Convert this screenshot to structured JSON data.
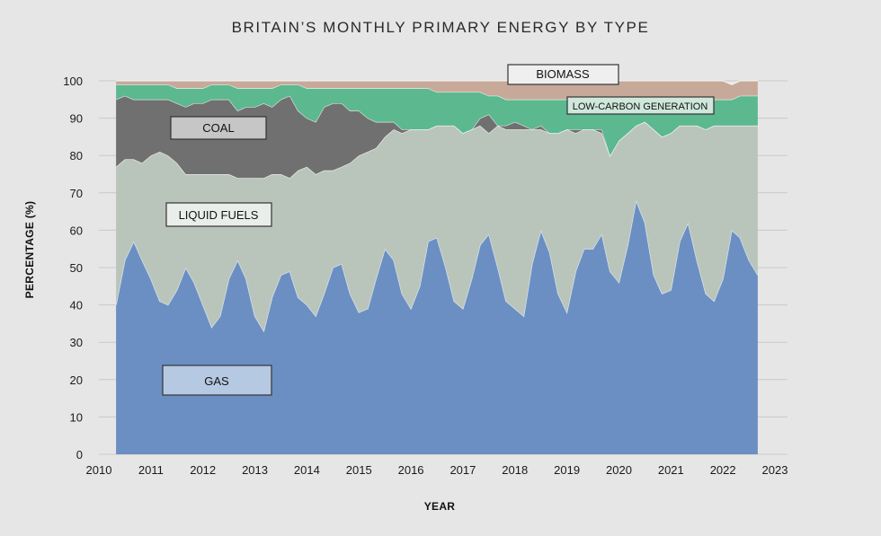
{
  "chart_data": {
    "type": "area",
    "stacked": true,
    "title": "BRITAIN’S MONTHLY PRIMARY ENERGY BY TYPE",
    "xlabel": "YEAR",
    "ylabel": "PERCENTAGE (%)",
    "xlim": [
      2010,
      2023
    ],
    "ylim": [
      0,
      100
    ],
    "xticks": [
      "2010",
      "2011",
      "2012",
      "2013",
      "2014",
      "2015",
      "2016",
      "2017",
      "2018",
      "2019",
      "2020",
      "2021",
      "2022",
      "2023"
    ],
    "yticks": [
      "0",
      "10",
      "20",
      "30",
      "40",
      "50",
      "60",
      "70",
      "80",
      "90",
      "100"
    ],
    "grid": true,
    "x": [
      2010.33,
      2010.5,
      2010.67,
      2010.83,
      2011.0,
      2011.17,
      2011.33,
      2011.5,
      2011.67,
      2011.83,
      2012.0,
      2012.17,
      2012.33,
      2012.5,
      2012.67,
      2012.83,
      2013.0,
      2013.17,
      2013.33,
      2013.5,
      2013.67,
      2013.83,
      2014.0,
      2014.17,
      2014.33,
      2014.5,
      2014.67,
      2014.83,
      2015.0,
      2015.17,
      2015.33,
      2015.5,
      2015.67,
      2015.83,
      2016.0,
      2016.17,
      2016.33,
      2016.5,
      2016.67,
      2016.83,
      2017.0,
      2017.17,
      2017.33,
      2017.5,
      2017.67,
      2017.83,
      2018.0,
      2018.17,
      2018.33,
      2018.5,
      2018.67,
      2018.83,
      2019.0,
      2019.17,
      2019.33,
      2019.5,
      2019.67,
      2019.83,
      2020.0,
      2020.17,
      2020.33,
      2020.5,
      2020.67,
      2020.83,
      2021.0,
      2021.17,
      2021.33,
      2021.5,
      2021.67,
      2021.83,
      2022.0,
      2022.17,
      2022.33,
      2022.5,
      2022.67
    ],
    "series": [
      {
        "name": "GAS",
        "color": "#6b8fc2",
        "values": [
          40,
          52,
          57,
          52,
          47,
          41,
          40,
          44,
          50,
          46,
          40,
          34,
          37,
          47,
          52,
          47,
          37,
          33,
          42,
          48,
          49,
          42,
          40,
          37,
          43,
          50,
          51,
          43,
          38,
          39,
          47,
          55,
          52,
          43,
          39,
          45,
          57,
          58,
          50,
          41,
          39,
          47,
          56,
          59,
          50,
          41,
          39,
          37,
          51,
          60,
          54,
          43,
          38,
          49,
          55,
          55,
          59,
          49,
          46,
          56,
          68,
          62,
          48,
          43,
          44,
          57,
          62,
          52,
          43,
          41,
          47,
          60,
          58,
          52,
          48
        ]
      },
      {
        "name": "LIQUID FUELS",
        "color": "#b9c5bb",
        "values": [
          37,
          27,
          22,
          26,
          33,
          40,
          40,
          34,
          25,
          29,
          35,
          41,
          38,
          28,
          22,
          27,
          37,
          41,
          33,
          27,
          25,
          34,
          37,
          38,
          33,
          26,
          26,
          35,
          42,
          42,
          35,
          30,
          35,
          43,
          48,
          42,
          30,
          30,
          38,
          47,
          47,
          40,
          32,
          27,
          38,
          46,
          48,
          50,
          36,
          27,
          32,
          43,
          49,
          37,
          32,
          32,
          27,
          31,
          38,
          30,
          20,
          27,
          39,
          42,
          42,
          31,
          26,
          36,
          44,
          47,
          41,
          28,
          30,
          36,
          40
        ]
      },
      {
        "name": "COAL",
        "color": "#707070",
        "values": [
          18,
          17,
          16,
          17,
          15,
          14,
          15,
          16,
          18,
          19,
          19,
          20,
          20,
          20,
          18,
          19,
          19,
          20,
          18,
          20,
          22,
          16,
          13,
          14,
          17,
          18,
          17,
          14,
          12,
          9,
          7,
          4,
          2,
          1,
          0,
          0,
          0,
          0,
          0,
          0,
          0,
          0,
          2,
          5,
          0,
          1,
          2,
          1,
          0,
          1,
          0,
          0,
          0,
          1,
          0,
          0,
          1,
          0,
          0,
          0,
          0,
          0,
          0,
          0,
          0,
          0,
          0,
          0,
          0,
          0,
          0,
          0,
          0,
          0,
          0
        ]
      },
      {
        "name": "LOW-CARBON GENERATION",
        "color": "#5cb88e",
        "values": [
          4,
          3,
          4,
          4,
          4,
          4,
          4,
          4,
          5,
          4,
          4,
          4,
          4,
          4,
          6,
          5,
          5,
          4,
          5,
          4,
          3,
          7,
          8,
          9,
          5,
          4,
          4,
          6,
          6,
          8,
          9,
          9,
          9,
          11,
          11,
          11,
          11,
          9,
          9,
          9,
          11,
          10,
          7,
          5,
          8,
          7,
          6,
          7,
          8,
          7,
          9,
          9,
          8,
          8,
          8,
          8,
          8,
          15,
          11,
          9,
          7,
          6,
          7,
          9,
          8,
          7,
          7,
          7,
          8,
          7,
          7,
          7,
          8,
          8,
          8
        ]
      },
      {
        "name": "BIOMASS",
        "color": "#c7a99a",
        "values": [
          1,
          1,
          1,
          1,
          1,
          1,
          1,
          2,
          2,
          2,
          2,
          1,
          1,
          1,
          2,
          2,
          2,
          2,
          2,
          1,
          1,
          1,
          2,
          2,
          2,
          2,
          2,
          2,
          2,
          2,
          2,
          2,
          2,
          2,
          2,
          2,
          2,
          3,
          3,
          3,
          3,
          3,
          3,
          4,
          4,
          5,
          5,
          5,
          5,
          5,
          5,
          5,
          5,
          5,
          5,
          5,
          5,
          5,
          5,
          5,
          5,
          5,
          6,
          6,
          6,
          5,
          5,
          5,
          5,
          5,
          5,
          4,
          4,
          4,
          4
        ]
      }
    ],
    "annotations": [
      "BIOMASS",
      "LOW-CARBON GENERATION",
      "COAL",
      "LIQUID FUELS",
      "GAS"
    ]
  }
}
